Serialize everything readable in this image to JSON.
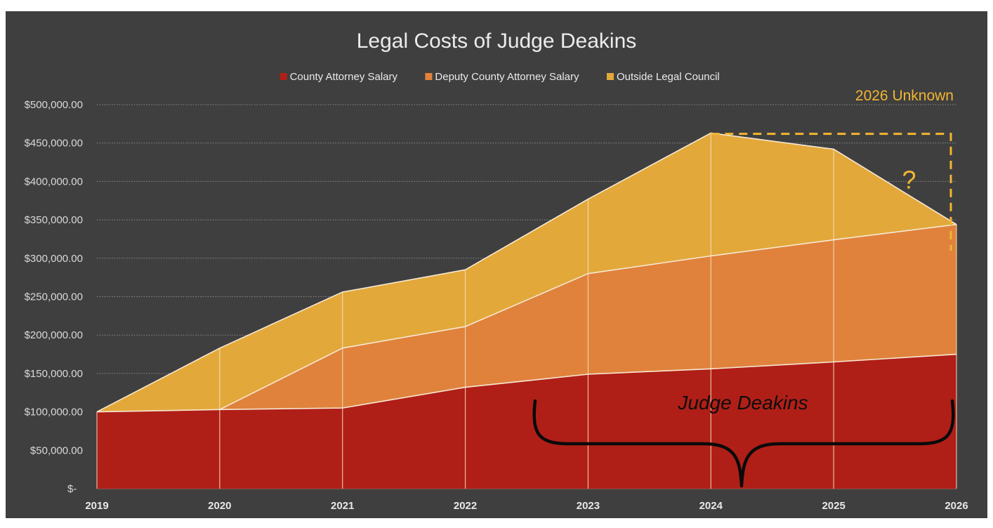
{
  "chart_data": {
    "type": "area",
    "stacked": true,
    "title": "Legal Costs of Judge Deakins",
    "xlabel": "",
    "ylabel": "",
    "categories": [
      "2019",
      "2020",
      "2021",
      "2022",
      "2023",
      "2024",
      "2025",
      "2026"
    ],
    "series": [
      {
        "name": "County Attorney Salary",
        "color": "#b01f17",
        "values": [
          100000,
          103000,
          105000,
          132000,
          149000,
          156000,
          165000,
          175000
        ]
      },
      {
        "name": "Deputy County Attorney Salary",
        "color": "#e0823c",
        "values": [
          0,
          0,
          78000,
          79000,
          131000,
          147000,
          159000,
          169000
        ]
      },
      {
        "name": "Outside Legal Council",
        "color": "#e3a83a",
        "values": [
          0,
          80000,
          73000,
          74000,
          97000,
          160000,
          118000,
          0
        ]
      }
    ],
    "ylim": [
      0,
      500000
    ],
    "yticks": [
      0,
      50000,
      100000,
      150000,
      200000,
      250000,
      300000,
      350000,
      400000,
      450000,
      500000
    ],
    "ytick_labels": [
      "$-",
      "$50,000.00",
      "$100,000.00",
      "$150,000.00",
      "$200,000.00",
      "$250,000.00",
      "$300,000.00",
      "$350,000.00",
      "$400,000.00",
      "$450,000.00",
      "$500,000.00"
    ],
    "grid": true,
    "legend_position": "top-center",
    "annotations": {
      "unknown_label": "2026 Unknown",
      "question_mark": "?",
      "unknown_box_from": "2024",
      "unknown_box_to": "2026",
      "unknown_box_top": 462000,
      "unknown_box_bottom": 310000,
      "brace_label": "Judge Deakins",
      "brace_from_year": 2022.5,
      "brace_to_year": 2026,
      "brace_point_year": 2024.25,
      "annotation_color": "#f2b632",
      "brace_color": "#0a0a0a"
    }
  }
}
